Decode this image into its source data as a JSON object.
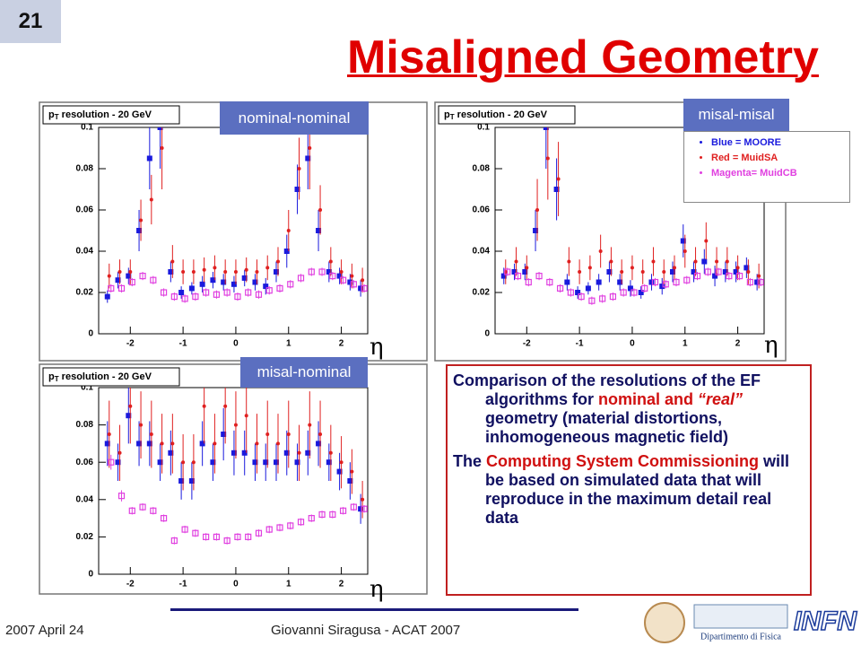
{
  "slide_number": "21",
  "title": "Misaligned Geometry",
  "panel_tags": [
    "nominal-nominal",
    "misal-misal",
    "misal-nominal"
  ],
  "eta_labels": [
    "η",
    "η",
    "η"
  ],
  "textbox": {
    "paragraphs": [
      [
        {
          "text": "Comparison of the resolutions of the EF algorithms for "
        },
        {
          "text": "nominal and ",
          "color": "#d01010"
        },
        {
          "text": "“real”",
          "color": "#d01010",
          "italic": true
        },
        {
          "text": "  geometry (material distortions, inhomogeneous magnetic field)"
        }
      ],
      [
        {
          "text": "The "
        },
        {
          "text": "Computing System Commissioning",
          "color": "#d01010"
        },
        {
          "text": " will be based on simulated data that will reproduce in the maximum detail real data"
        }
      ]
    ]
  },
  "footer": {
    "date": "2007 April 24",
    "author": "Giovanni Siragusa - ACAT 2007",
    "logo_text": "Dipartimento di Fisica",
    "logo_infn": "INFN"
  },
  "chart_data": [
    {
      "type": "scatter",
      "title": "p",
      "title_sub": "T",
      "title_rest": " resolution - 20 GeV",
      "legend": false,
      "x": [
        -2.4,
        -2.2,
        -2.0,
        -1.8,
        -1.6,
        -1.4,
        -1.2,
        -1.0,
        -0.8,
        -0.6,
        -0.4,
        -0.2,
        0,
        0.2,
        0.4,
        0.6,
        0.8,
        1.0,
        1.2,
        1.4,
        1.6,
        1.8,
        2.0,
        2.2,
        2.4
      ],
      "xlim": [
        -2.6,
        2.5
      ],
      "xticks": [
        -2,
        -1,
        0,
        1,
        2
      ],
      "ylim": [
        0,
        0.1
      ],
      "yticks": [
        0,
        0.02,
        0.04,
        0.06,
        0.08,
        0.1
      ],
      "series": [
        {
          "color": "#1a1add",
          "marker": "square",
          "values": [
            0.018,
            0.026,
            0.028,
            0.05,
            0.085,
            0.1,
            0.03,
            0.02,
            0.022,
            0.024,
            0.026,
            0.025,
            0.024,
            0.027,
            0.025,
            0.023,
            0.03,
            0.04,
            0.07,
            0.085,
            0.05,
            0.03,
            0.028,
            0.025,
            0.022
          ],
          "errors": [
            0.003,
            0.004,
            0.004,
            0.01,
            0.015,
            0.02,
            0.005,
            0.003,
            0.003,
            0.004,
            0.004,
            0.004,
            0.004,
            0.004,
            0.004,
            0.004,
            0.005,
            0.008,
            0.012,
            0.015,
            0.01,
            0.005,
            0.004,
            0.004,
            0.004
          ]
        },
        {
          "color": "#e02020",
          "marker": "dot",
          "values": [
            0.028,
            0.03,
            0.03,
            0.055,
            0.065,
            0.09,
            0.035,
            0.03,
            0.03,
            0.031,
            0.032,
            0.03,
            0.03,
            0.031,
            0.03,
            0.032,
            0.035,
            0.05,
            0.08,
            0.09,
            0.06,
            0.035,
            0.03,
            0.028,
            0.026
          ],
          "errors": [
            0.006,
            0.006,
            0.006,
            0.01,
            0.012,
            0.02,
            0.008,
            0.006,
            0.006,
            0.006,
            0.006,
            0.006,
            0.006,
            0.006,
            0.006,
            0.006,
            0.007,
            0.01,
            0.015,
            0.02,
            0.012,
            0.007,
            0.006,
            0.006,
            0.006
          ]
        },
        {
          "color": "#e040e0",
          "marker": "open",
          "values": [
            0.022,
            0.022,
            0.025,
            0.028,
            0.026,
            0.02,
            0.018,
            0.017,
            0.018,
            0.02,
            0.019,
            0.02,
            0.018,
            0.02,
            0.019,
            0.021,
            0.022,
            0.024,
            0.027,
            0.03,
            0.03,
            0.028,
            0.026,
            0.024,
            0.022
          ],
          "errors": [
            0.002,
            0.002,
            0.002,
            0.002,
            0.002,
            0.002,
            0.002,
            0.002,
            0.002,
            0.002,
            0.002,
            0.002,
            0.002,
            0.002,
            0.002,
            0.002,
            0.002,
            0.002,
            0.002,
            0.002,
            0.002,
            0.002,
            0.002,
            0.002,
            0.002
          ]
        }
      ]
    },
    {
      "type": "scatter",
      "title": "p",
      "title_sub": "T",
      "title_rest": " resolution - 20 GeV",
      "legend": true,
      "x": [
        -2.4,
        -2.2,
        -2.0,
        -1.8,
        -1.6,
        -1.4,
        -1.2,
        -1.0,
        -0.8,
        -0.6,
        -0.4,
        -0.2,
        0,
        0.2,
        0.4,
        0.6,
        0.8,
        1.0,
        1.2,
        1.4,
        1.6,
        1.8,
        2.0,
        2.2,
        2.4
      ],
      "xlim": [
        -2.6,
        2.5
      ],
      "xticks": [
        -2,
        -1,
        0,
        1,
        2
      ],
      "ylim": [
        0,
        0.1
      ],
      "yticks": [
        0,
        0.02,
        0.04,
        0.06,
        0.08,
        0.1
      ],
      "series": [
        {
          "name": "Blue = MOORE",
          "color": "#1a1add",
          "marker": "square",
          "values": [
            0.028,
            0.03,
            0.03,
            0.05,
            0.1,
            0.07,
            0.025,
            0.02,
            0.022,
            0.025,
            0.03,
            0.025,
            0.022,
            0.02,
            0.025,
            0.023,
            0.03,
            0.045,
            0.03,
            0.035,
            0.028,
            0.03,
            0.03,
            0.032,
            0.025
          ],
          "errors": [
            0.004,
            0.004,
            0.004,
            0.01,
            0.02,
            0.015,
            0.004,
            0.003,
            0.003,
            0.004,
            0.005,
            0.004,
            0.004,
            0.003,
            0.004,
            0.004,
            0.005,
            0.008,
            0.005,
            0.006,
            0.005,
            0.005,
            0.005,
            0.005,
            0.004
          ]
        },
        {
          "name": "Red = MuidSA",
          "color": "#e02020",
          "marker": "dot",
          "values": [
            0.03,
            0.035,
            0.032,
            0.06,
            0.085,
            0.075,
            0.035,
            0.03,
            0.032,
            0.04,
            0.035,
            0.03,
            0.032,
            0.03,
            0.035,
            0.03,
            0.032,
            0.04,
            0.035,
            0.045,
            0.035,
            0.035,
            0.032,
            0.03,
            0.028
          ],
          "errors": [
            0.006,
            0.007,
            0.006,
            0.015,
            0.02,
            0.018,
            0.007,
            0.006,
            0.006,
            0.008,
            0.007,
            0.006,
            0.006,
            0.006,
            0.007,
            0.006,
            0.006,
            0.008,
            0.007,
            0.009,
            0.007,
            0.007,
            0.006,
            0.006,
            0.006
          ]
        },
        {
          "name": "Magenta= MuidCB",
          "color": "#e040e0",
          "marker": "open",
          "values": [
            0.03,
            0.028,
            0.025,
            0.028,
            0.025,
            0.022,
            0.02,
            0.018,
            0.016,
            0.017,
            0.018,
            0.02,
            0.02,
            0.022,
            0.025,
            0.024,
            0.025,
            0.026,
            0.028,
            0.03,
            0.03,
            0.028,
            0.028,
            0.025,
            0.025
          ],
          "errors": [
            0.002,
            0.002,
            0.002,
            0.002,
            0.002,
            0.002,
            0.002,
            0.002,
            0.002,
            0.002,
            0.002,
            0.002,
            0.002,
            0.002,
            0.002,
            0.002,
            0.002,
            0.002,
            0.002,
            0.002,
            0.002,
            0.002,
            0.002,
            0.002,
            0.002
          ]
        }
      ]
    },
    {
      "type": "scatter",
      "title": "p",
      "title_sub": "T",
      "title_rest": " resolution - 20 GeV",
      "legend": false,
      "x": [
        -2.4,
        -2.2,
        -2.0,
        -1.8,
        -1.6,
        -1.4,
        -1.2,
        -1.0,
        -0.8,
        -0.6,
        -0.4,
        -0.2,
        0,
        0.2,
        0.4,
        0.6,
        0.8,
        1.0,
        1.2,
        1.4,
        1.6,
        1.8,
        2.0,
        2.2,
        2.4
      ],
      "xlim": [
        -2.6,
        2.5
      ],
      "xticks": [
        -2,
        -1,
        0,
        1,
        2
      ],
      "ylim": [
        0,
        0.1
      ],
      "yticks": [
        0,
        0.02,
        0.04,
        0.06,
        0.08,
        0.1
      ],
      "series": [
        {
          "color": "#1a1add",
          "marker": "square",
          "values": [
            0.07,
            0.06,
            0.085,
            0.07,
            0.07,
            0.06,
            0.065,
            0.05,
            0.05,
            0.07,
            0.06,
            0.075,
            0.065,
            0.065,
            0.06,
            0.06,
            0.06,
            0.065,
            0.06,
            0.065,
            0.07,
            0.06,
            0.055,
            0.05,
            0.035
          ],
          "errors": [
            0.012,
            0.01,
            0.015,
            0.012,
            0.012,
            0.01,
            0.012,
            0.01,
            0.01,
            0.012,
            0.01,
            0.014,
            0.012,
            0.012,
            0.01,
            0.01,
            0.01,
            0.012,
            0.01,
            0.012,
            0.012,
            0.01,
            0.01,
            0.01,
            0.008
          ]
        },
        {
          "color": "#e02020",
          "marker": "dot",
          "values": [
            0.075,
            0.065,
            0.09,
            0.08,
            0.075,
            0.07,
            0.07,
            0.06,
            0.06,
            0.09,
            0.07,
            0.09,
            0.08,
            0.085,
            0.07,
            0.075,
            0.07,
            0.075,
            0.065,
            0.08,
            0.075,
            0.065,
            0.06,
            0.055,
            0.04
          ],
          "errors": [
            0.018,
            0.015,
            0.02,
            0.018,
            0.018,
            0.016,
            0.016,
            0.015,
            0.015,
            0.02,
            0.016,
            0.02,
            0.018,
            0.02,
            0.016,
            0.018,
            0.016,
            0.018,
            0.015,
            0.018,
            0.018,
            0.015,
            0.014,
            0.012,
            0.01
          ]
        },
        {
          "color": "#e040e0",
          "marker": "open",
          "values": [
            0.06,
            0.042,
            0.034,
            0.036,
            0.034,
            0.03,
            0.018,
            0.024,
            0.022,
            0.02,
            0.02,
            0.018,
            0.02,
            0.02,
            0.022,
            0.024,
            0.025,
            0.026,
            0.028,
            0.03,
            0.032,
            0.032,
            0.034,
            0.036,
            0.035
          ],
          "errors": [
            0.004,
            0.003,
            0.002,
            0.002,
            0.002,
            0.002,
            0.002,
            0.002,
            0.002,
            0.002,
            0.002,
            0.002,
            0.002,
            0.002,
            0.002,
            0.002,
            0.002,
            0.002,
            0.002,
            0.002,
            0.002,
            0.002,
            0.002,
            0.002,
            0.002
          ]
        }
      ]
    }
  ]
}
